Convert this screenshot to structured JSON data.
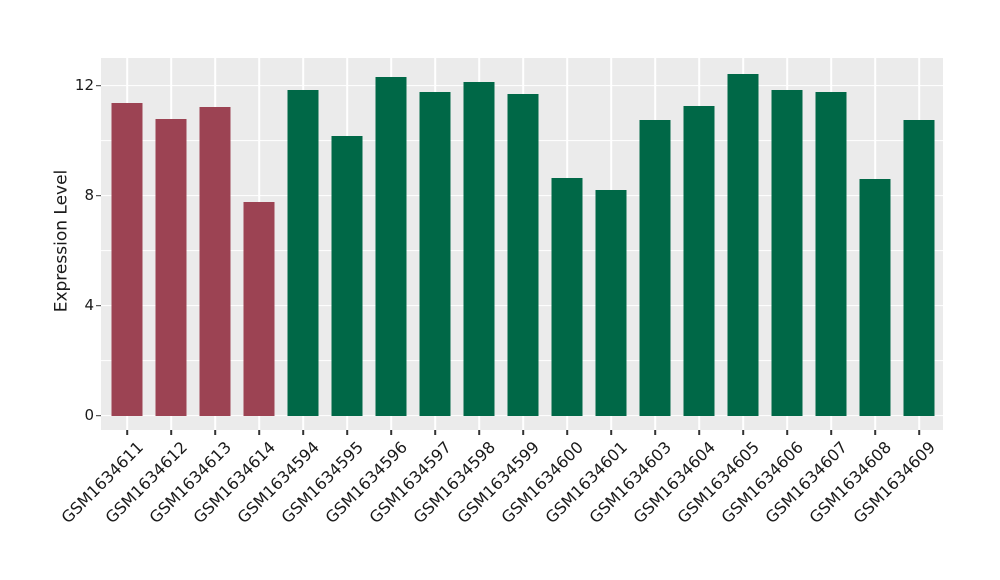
{
  "chart_data": {
    "type": "bar",
    "title": "",
    "xlabel": "",
    "ylabel": "Expression Level",
    "categories": [
      "GSM1634611",
      "GSM1634612",
      "GSM1634613",
      "GSM1634614",
      "GSM1634594",
      "GSM1634595",
      "GSM1634596",
      "GSM1634597",
      "GSM1634598",
      "GSM1634599",
      "GSM1634600",
      "GSM1634601",
      "GSM1634603",
      "GSM1634604",
      "GSM1634605",
      "GSM1634606",
      "GSM1634607",
      "GSM1634608",
      "GSM1634609"
    ],
    "values": [
      11.35,
      10.78,
      11.22,
      7.76,
      11.85,
      10.16,
      12.31,
      11.75,
      12.12,
      11.69,
      8.62,
      8.2,
      10.75,
      11.25,
      12.41,
      11.84,
      11.78,
      8.6,
      10.75
    ],
    "bar_colors": [
      "#9c4353",
      "#9c4353",
      "#9c4353",
      "#9c4353",
      "#006847",
      "#006847",
      "#006847",
      "#006847",
      "#006847",
      "#006847",
      "#006847",
      "#006847",
      "#006847",
      "#006847",
      "#006847",
      "#006847",
      "#006847",
      "#006847",
      "#006847"
    ],
    "group_colors": {
      "highlight": "#9c4353",
      "default": "#006847"
    },
    "ylim": [
      0,
      13
    ],
    "yticks": [
      0,
      4,
      8,
      12
    ],
    "ytick_labels": [
      "0",
      "4",
      "8",
      "12"
    ],
    "ygrid_values": [
      0,
      2,
      4,
      6,
      8,
      10,
      12
    ],
    "grid": "on",
    "grid_color": "#ffffff",
    "panel_background": "#ebebeb",
    "legend": "none",
    "xtick_rotation_deg": 45
  }
}
